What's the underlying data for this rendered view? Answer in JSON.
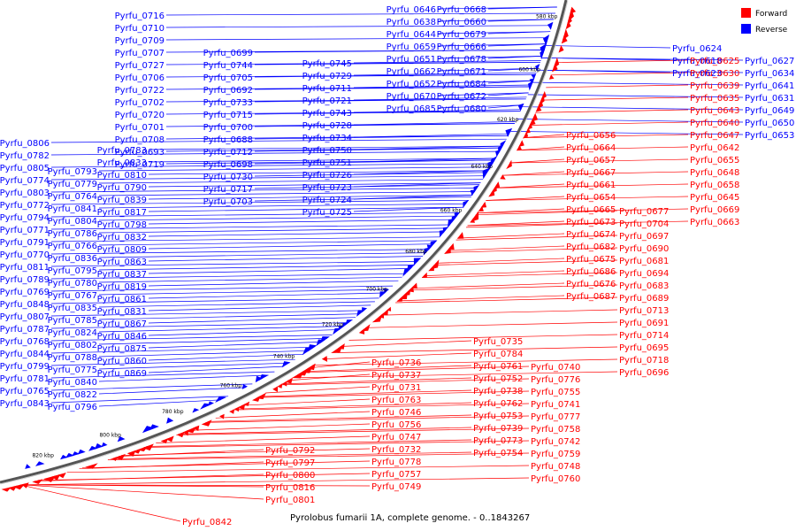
{
  "caption": "Pyrolobus fumarii 1A, complete genome. - 0..1843267",
  "legend": [
    {
      "label": "Forward",
      "color": "#ff0000"
    },
    {
      "label": "Reverse",
      "color": "#0000ff"
    }
  ],
  "colors": {
    "forward": "#ff0000",
    "reverse": "#0000ff",
    "backbone": "#555555"
  },
  "scale_ticks": [
    "580 kbp",
    "600 kbp",
    "620 kbp",
    "640 kbp",
    "660 kbp",
    "680 kbp",
    "700 kbp",
    "720 kbp",
    "740 kbp",
    "760 kbp",
    "780 kbp",
    "800 kbp",
    "820 kbp"
  ],
  "genes_reverse": [
    "Pyrfu_0716",
    "Pyrfu_0710",
    "Pyrfu_0709",
    "Pyrfu_0707",
    "Pyrfu_0727",
    "Pyrfu_0706",
    "Pyrfu_0722",
    "Pyrfu_0702",
    "Pyrfu_0720",
    "Pyrfu_0701",
    "Pyrfu_0708",
    "Pyrfu_0693",
    "Pyrfu_0719",
    "Pyrfu_0699",
    "Pyrfu_0744",
    "Pyrfu_0705",
    "Pyrfu_0692",
    "Pyrfu_0733",
    "Pyrfu_0715",
    "Pyrfu_0700",
    "Pyrfu_0688",
    "Pyrfu_0712",
    "Pyrfu_0698",
    "Pyrfu_0730",
    "Pyrfu_0717",
    "Pyrfu_0703",
    "Pyrfu_0745",
    "Pyrfu_0729",
    "Pyrfu_0711",
    "Pyrfu_0721",
    "Pyrfu_0743",
    "Pyrfu_0728",
    "Pyrfu_0734",
    "Pyrfu_0750",
    "Pyrfu_0751",
    "Pyrfu_0726",
    "Pyrfu_0723",
    "Pyrfu_0724",
    "Pyrfu_0725",
    "Pyrfu_0646",
    "Pyrfu_0638",
    "Pyrfu_0644",
    "Pyrfu_0659",
    "Pyrfu_0651",
    "Pyrfu_0662",
    "Pyrfu_0652",
    "Pyrfu_0670",
    "Pyrfu_0685",
    "Pyrfu_0668",
    "Pyrfu_0660",
    "Pyrfu_0679",
    "Pyrfu_0666",
    "Pyrfu_0678",
    "Pyrfu_0671",
    "Pyrfu_0684",
    "Pyrfu_0672",
    "Pyrfu_0680",
    "Pyrfu_0806",
    "Pyrfu_0782",
    "Pyrfu_0805",
    "Pyrfu_0774",
    "Pyrfu_0803",
    "Pyrfu_0772",
    "Pyrfu_0794",
    "Pyrfu_0771",
    "Pyrfu_0791",
    "Pyrfu_0770",
    "Pyrfu_0811",
    "Pyrfu_0789",
    "Pyrfu_0769",
    "Pyrfu_0848",
    "Pyrfu_0807",
    "Pyrfu_0787",
    "Pyrfu_0768",
    "Pyrfu_0844",
    "Pyrfu_0799",
    "Pyrfu_0781",
    "Pyrfu_0765",
    "Pyrfu_0843",
    "Pyrfu_0793",
    "Pyrfu_0779",
    "Pyrfu_0764",
    "Pyrfu_0841",
    "Pyrfu_0804",
    "Pyrfu_0786",
    "Pyrfu_0766",
    "Pyrfu_0836",
    "Pyrfu_0795",
    "Pyrfu_0780",
    "Pyrfu_0767",
    "Pyrfu_0835",
    "Pyrfu_0785",
    "Pyrfu_0824",
    "Pyrfu_0802",
    "Pyrfu_0788",
    "Pyrfu_0775",
    "Pyrfu_0840",
    "Pyrfu_0822",
    "Pyrfu_0796",
    "Pyrfu_0783",
    "Pyrfu_0833",
    "Pyrfu_0810",
    "Pyrfu_0790",
    "Pyrfu_0839",
    "Pyrfu_0817",
    "Pyrfu_0798",
    "Pyrfu_0832",
    "Pyrfu_0809",
    "Pyrfu_0863",
    "Pyrfu_0837",
    "Pyrfu_0819",
    "Pyrfu_0861",
    "Pyrfu_0831",
    "Pyrfu_0867",
    "Pyrfu_0846",
    "Pyrfu_0875",
    "Pyrfu_0860",
    "Pyrfu_0869",
    "Pyrfu_0624",
    "Pyrfu_0618",
    "Pyrfu_0623",
    "Pyrfu_0627",
    "Pyrfu_0634",
    "Pyrfu_0641",
    "Pyrfu_0631",
    "Pyrfu_0649",
    "Pyrfu_0650",
    "Pyrfu_0653"
  ],
  "genes_forward": [
    "Pyrfu_0625",
    "Pyrfu_0630",
    "Pyrfu_0639",
    "Pyrfu_0635",
    "Pyrfu_0643",
    "Pyrfu_0640",
    "Pyrfu_0647",
    "Pyrfu_0642",
    "Pyrfu_0655",
    "Pyrfu_0648",
    "Pyrfu_0658",
    "Pyrfu_0645",
    "Pyrfu_0669",
    "Pyrfu_0663",
    "Pyrfu_0656",
    "Pyrfu_0664",
    "Pyrfu_0657",
    "Pyrfu_0667",
    "Pyrfu_0661",
    "Pyrfu_0654",
    "Pyrfu_0665",
    "Pyrfu_0673",
    "Pyrfu_0674",
    "Pyrfu_0682",
    "Pyrfu_0675",
    "Pyrfu_0686",
    "Pyrfu_0676",
    "Pyrfu_0687",
    "Pyrfu_0677",
    "Pyrfu_0704",
    "Pyrfu_0697",
    "Pyrfu_0690",
    "Pyrfu_0681",
    "Pyrfu_0694",
    "Pyrfu_0683",
    "Pyrfu_0689",
    "Pyrfu_0713",
    "Pyrfu_0691",
    "Pyrfu_0714",
    "Pyrfu_0695",
    "Pyrfu_0718",
    "Pyrfu_0696",
    "Pyrfu_0736",
    "Pyrfu_0737",
    "Pyrfu_0731",
    "Pyrfu_0763",
    "Pyrfu_0746",
    "Pyrfu_0756",
    "Pyrfu_0747",
    "Pyrfu_0732",
    "Pyrfu_0778",
    "Pyrfu_0757",
    "Pyrfu_0749",
    "Pyrfu_0735",
    "Pyrfu_0784",
    "Pyrfu_0761",
    "Pyrfu_0752",
    "Pyrfu_0738",
    "Pyrfu_0762",
    "Pyrfu_0753",
    "Pyrfu_0739",
    "Pyrfu_0773",
    "Pyrfu_0754",
    "Pyrfu_0740",
    "Pyrfu_0776",
    "Pyrfu_0755",
    "Pyrfu_0741",
    "Pyrfu_0777",
    "Pyrfu_0758",
    "Pyrfu_0742",
    "Pyrfu_0759",
    "Pyrfu_0748",
    "Pyrfu_0760",
    "Pyrfu_0792",
    "Pyrfu_0797",
    "Pyrfu_0800",
    "Pyrfu_0816",
    "Pyrfu_0801",
    "Pyrfu_0842"
  ]
}
